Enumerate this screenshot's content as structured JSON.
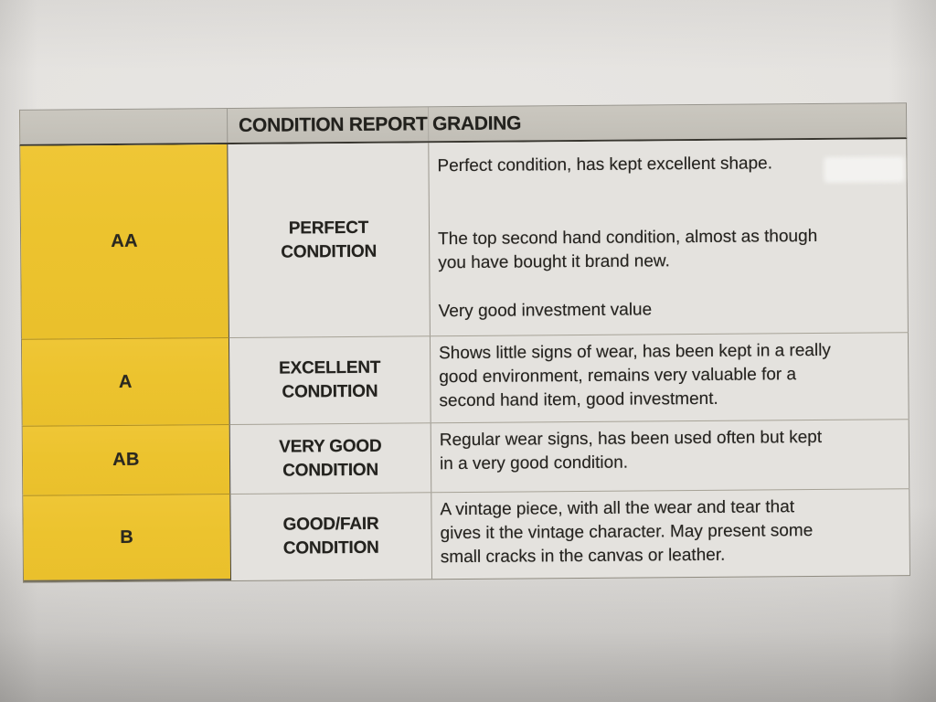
{
  "header": {
    "title": "CONDITION REPORT GRADING"
  },
  "rows": [
    {
      "grade": "AA",
      "name_lines": [
        "PERFECT",
        "CONDITION"
      ],
      "paragraphs": [
        [
          "Perfect condition, has kept excellent shape."
        ],
        [
          "The top second hand condition, almost as though",
          "you have bought it brand new."
        ],
        [
          "Very good investment value"
        ]
      ]
    },
    {
      "grade": "A",
      "name_lines": [
        "EXCELLENT",
        "CONDITION"
      ],
      "paragraphs": [
        [
          "Shows little signs of wear, has been kept in a really",
          "good environment, remains very valuable for a",
          "second hand item, good investment."
        ]
      ]
    },
    {
      "grade": "AB",
      "name_lines": [
        "VERY GOOD",
        "CONDITION"
      ],
      "paragraphs": [
        [
          "Regular wear signs, has been used often but kept",
          "in a very good condition."
        ]
      ]
    },
    {
      "grade": "B",
      "name_lines": [
        "GOOD/FAIR",
        "CONDITION"
      ],
      "paragraphs": [
        [
          "A vintage piece, with all the wear and tear that",
          "gives it the vintage character. May present some",
          "small cracks in the canvas or leather."
        ]
      ]
    }
  ],
  "colors": {
    "grade_column_yellow": "#ecc32e",
    "header_bar_gray": "#c5c2ba",
    "cell_background": "#e4e2de",
    "ink": "#262420"
  }
}
